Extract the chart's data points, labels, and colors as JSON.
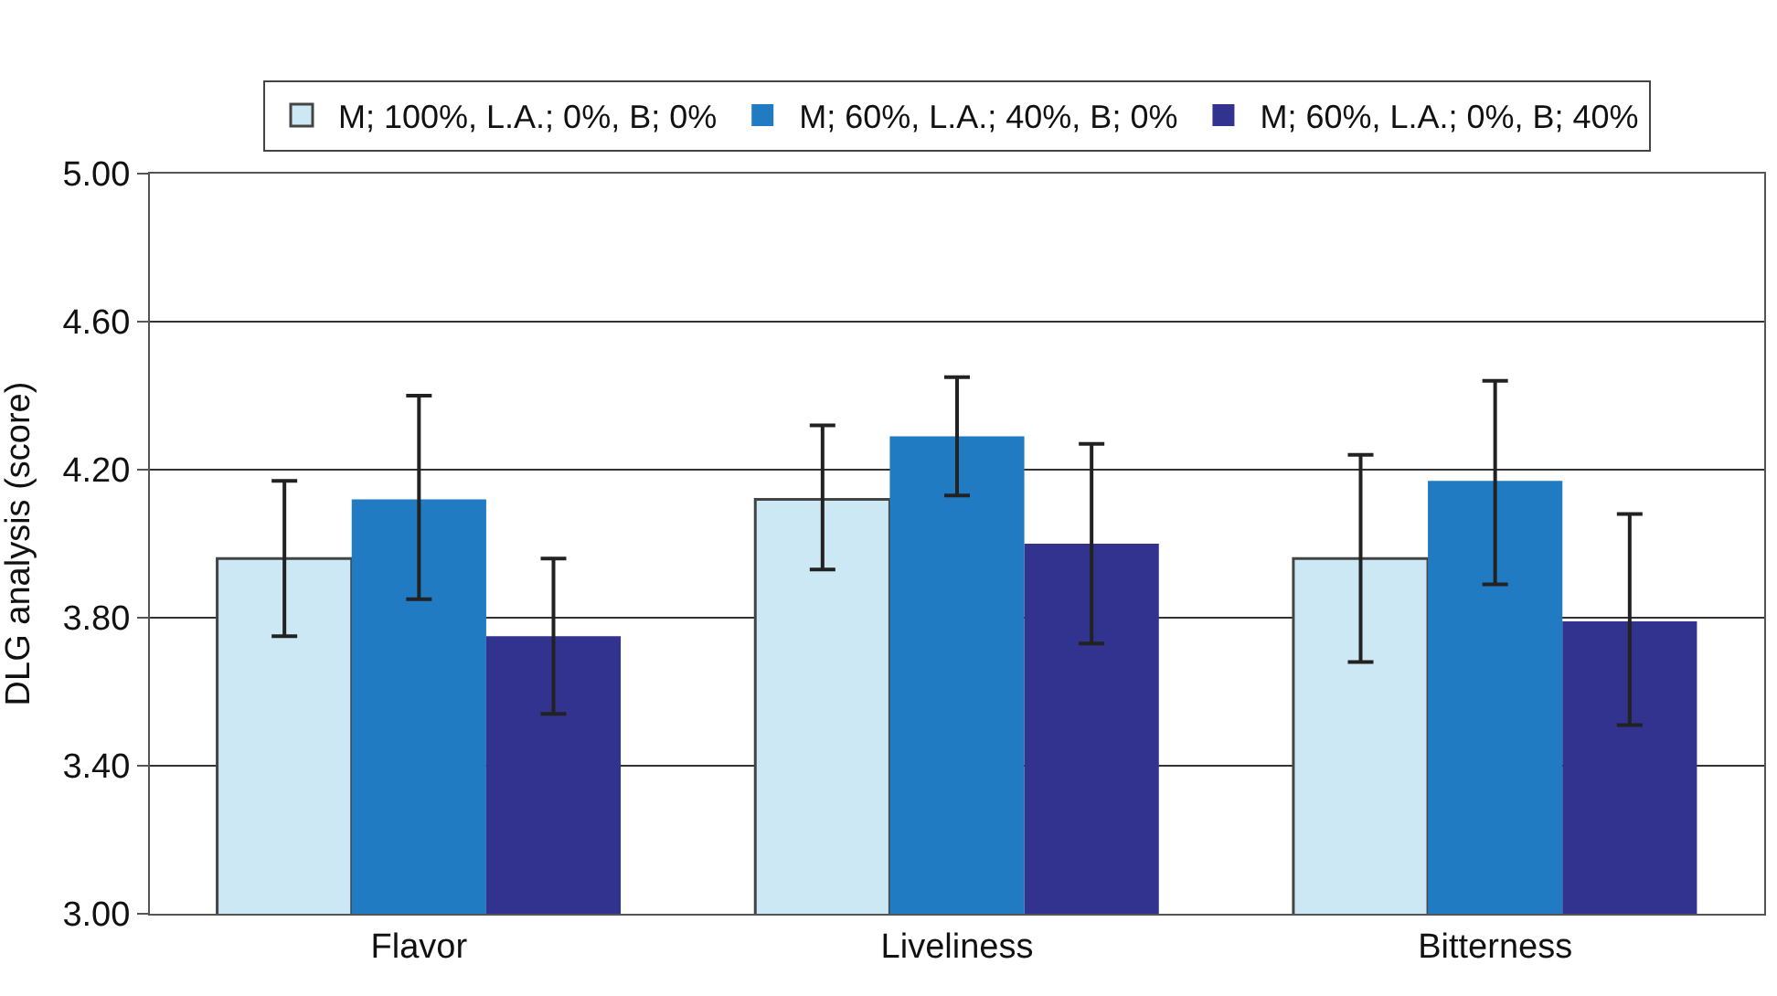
{
  "chart_data": {
    "type": "bar",
    "ylabel": "DLG analysis (score)",
    "categories": [
      "Flavor",
      "Liveliness",
      "Bitterness"
    ],
    "series": [
      {
        "name": "M; 100%, L.A.; 0%, B; 0%",
        "color": "#cce8f4",
        "values": [
          3.96,
          4.12,
          3.96
        ],
        "errors": [
          [
            3.75,
            4.17
          ],
          [
            3.93,
            4.32
          ],
          [
            3.68,
            4.24
          ]
        ]
      },
      {
        "name": "M; 60%, L.A.; 40%, B; 0%",
        "color": "#217bc2",
        "values": [
          4.12,
          4.29,
          4.17
        ],
        "errors": [
          [
            3.85,
            4.4
          ],
          [
            4.13,
            4.45
          ],
          [
            3.89,
            4.44
          ]
        ]
      },
      {
        "name": "M; 60%, L.A.; 0%, B; 40%",
        "color": "#31338f",
        "values": [
          3.75,
          4.0,
          3.79
        ],
        "errors": [
          [
            3.54,
            3.96
          ],
          [
            3.73,
            4.27
          ],
          [
            3.51,
            4.08
          ]
        ]
      }
    ],
    "ylim": [
      3.0,
      5.0
    ],
    "yticks": [
      {
        "value": 3.0,
        "label": "3.00"
      },
      {
        "value": 3.4,
        "label": "3.40"
      },
      {
        "value": 3.8,
        "label": "3.80"
      },
      {
        "value": 4.2,
        "label": "4.20"
      },
      {
        "value": 4.6,
        "label": "4.60"
      },
      {
        "value": 5.0,
        "label": "5.00"
      }
    ],
    "grid": "y",
    "legend": "top"
  }
}
